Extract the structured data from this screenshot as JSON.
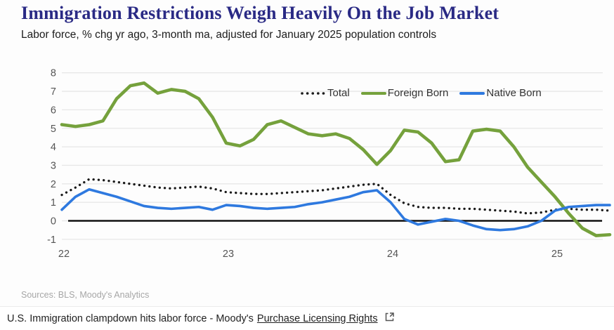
{
  "header": {
    "title": "Immigration Restrictions Weigh Heavily On the Job Market",
    "subtitle": "Labor force, % chg yr ago, 3-month ma, adjusted for January 2025 population controls"
  },
  "footer": {
    "sources": "Sources: BLS, Moody's Analytics"
  },
  "caption": {
    "text": "U.S. Immigration clampdown hits labor force - Moody's",
    "link_label": "Purchase Licensing Rights",
    "external_link_icon": "external-link-icon"
  },
  "colors": {
    "title": "#2a2a85",
    "total_line": "#1a1a1a",
    "foreign_born_line": "#75a13c",
    "native_born_line": "#2e79df",
    "gridline": "#e7e7e7",
    "zero_line": "#111111",
    "tick_text": "#555555"
  },
  "chart_data": {
    "type": "line",
    "title": "Immigration Restrictions Weigh Heavily On the Job Market",
    "ylabel": "Labor force, % chg yr ago, 3-month ma",
    "ylim": [
      -1,
      8
    ],
    "y_ticks": [
      8,
      7,
      6,
      5,
      4,
      3,
      2,
      1,
      0,
      -1
    ],
    "x_unit": "monthly, Jan 2022 - May 2025",
    "x_tick_labels": [
      "22",
      "23",
      "24",
      "25"
    ],
    "x_tick_month_index": [
      0,
      12,
      24,
      36
    ],
    "grid": "horizontal only",
    "legend_position": "top center inside",
    "zero_axis_emphasized": true,
    "series": [
      {
        "name": "Total",
        "style": "dotted",
        "color": "#1a1a1a",
        "values": [
          1.4,
          1.8,
          2.25,
          2.2,
          2.1,
          2.0,
          1.9,
          1.8,
          1.75,
          1.8,
          1.85,
          1.75,
          1.55,
          1.5,
          1.45,
          1.45,
          1.5,
          1.55,
          1.6,
          1.65,
          1.75,
          1.85,
          1.95,
          2.0,
          1.4,
          0.95,
          0.75,
          0.7,
          0.7,
          0.65,
          0.65,
          0.6,
          0.55,
          0.5,
          0.4,
          0.45,
          0.6,
          0.65,
          0.6,
          0.6,
          0.55
        ]
      },
      {
        "name": "Foreign Born",
        "style": "solid",
        "color": "#75a13c",
        "values": [
          5.2,
          5.1,
          5.2,
          5.4,
          6.6,
          7.3,
          7.45,
          6.9,
          7.1,
          7.0,
          6.6,
          5.6,
          4.2,
          4.05,
          4.4,
          5.2,
          5.4,
          5.05,
          4.7,
          4.6,
          4.7,
          4.45,
          3.85,
          3.05,
          3.8,
          4.9,
          4.8,
          4.2,
          3.2,
          3.3,
          4.85,
          4.95,
          4.85,
          4.0,
          2.9,
          2.1,
          1.3,
          0.4,
          -0.4,
          -0.8,
          -0.75
        ]
      },
      {
        "name": "Native Born",
        "style": "solid",
        "color": "#2e79df",
        "values": [
          0.6,
          1.3,
          1.7,
          1.5,
          1.3,
          1.05,
          0.8,
          0.7,
          0.65,
          0.7,
          0.75,
          0.6,
          0.85,
          0.8,
          0.7,
          0.65,
          0.7,
          0.75,
          0.9,
          1.0,
          1.15,
          1.3,
          1.55,
          1.65,
          1.0,
          0.1,
          -0.2,
          -0.05,
          0.1,
          0.0,
          -0.25,
          -0.45,
          -0.5,
          -0.45,
          -0.3,
          0.0,
          0.55,
          0.75,
          0.8,
          0.85,
          0.85
        ]
      }
    ]
  }
}
